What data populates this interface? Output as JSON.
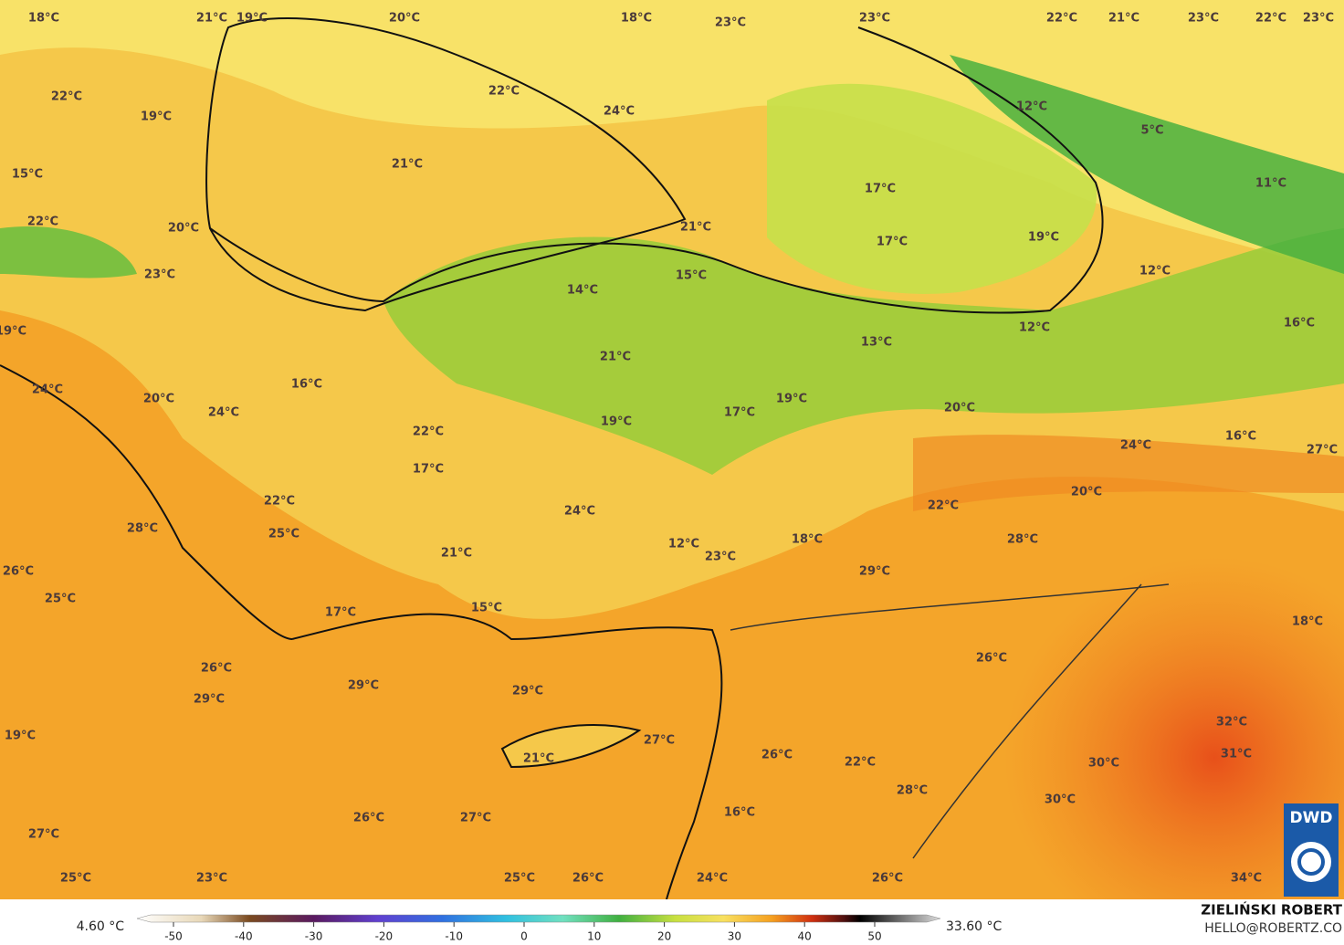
{
  "map": {
    "labels": [
      "18°C",
      "21°C",
      "19°C",
      "20°C",
      "18°C",
      "23°C",
      "23°C",
      "22°C",
      "21°C",
      "23°C",
      "22°C",
      "23°C",
      "22°C",
      "22°C",
      "24°C",
      "12°C",
      "5°C",
      "19°C",
      "15°C",
      "21°C",
      "17°C",
      "11°C",
      "22°C",
      "20°C",
      "21°C",
      "17°C",
      "19°C",
      "23°C",
      "15°C",
      "12°C",
      "14°C",
      "12°C",
      "16°C",
      "19°C",
      "13°C",
      "21°C",
      "24°C",
      "16°C",
      "20°C",
      "19°C",
      "24°C",
      "17°C",
      "20°C",
      "19°C",
      "22°C",
      "16°C",
      "24°C",
      "27°C",
      "17°C",
      "20°C",
      "22°C",
      "22°C",
      "24°C",
      "28°C",
      "25°C",
      "18°C",
      "28°C",
      "12°C",
      "23°C",
      "21°C",
      "29°C",
      "26°C",
      "25°C",
      "15°C",
      "17°C",
      "18°C",
      "26°C",
      "26°C",
      "29°C",
      "29°C",
      "29°C",
      "32°C",
      "19°C",
      "27°C",
      "26°C",
      "21°C",
      "22°C",
      "31°C",
      "30°C",
      "28°C",
      "16°C",
      "30°C",
      "26°C",
      "27°C",
      "27°C",
      "25°C",
      "23°C",
      "25°C",
      "26°C",
      "24°C",
      "26°C",
      "34°C"
    ],
    "logo": "DWD",
    "author": "ZIELIŃSKI ROBERT",
    "contact": "HELLO@ROBERTZ.CO"
  },
  "colorbar": {
    "min_label": "4.60 °C",
    "max_label": "33.60 °C",
    "ticks": [
      -50,
      -40,
      -30,
      -20,
      -10,
      0,
      10,
      20,
      30,
      40,
      50
    ]
  }
}
